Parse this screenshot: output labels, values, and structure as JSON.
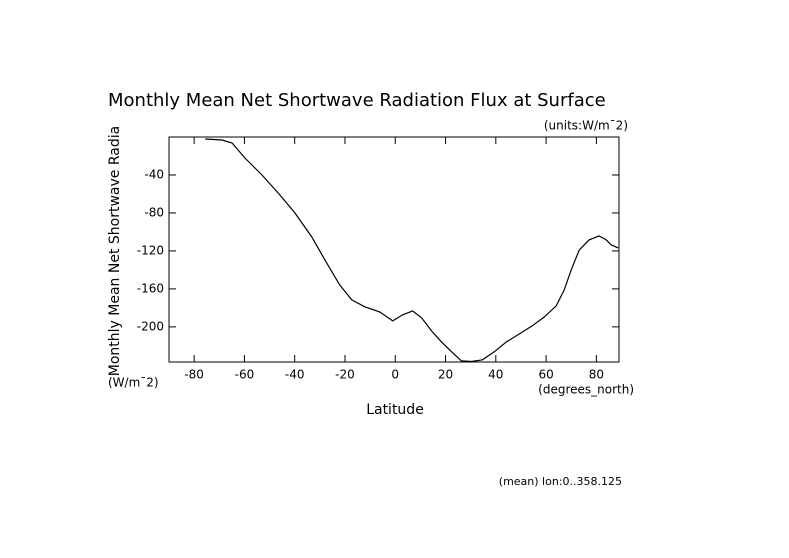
{
  "chart_data": {
    "type": "line",
    "title": "Monthly Mean Net Shortwave Radiation Flux at Surface",
    "subtitle": "(units:W/m¯2)",
    "y_label": "Monthly Mean Net Shortwave Radia",
    "y_unit": "(W/m¯2)",
    "x_label": "Latitude",
    "x_unit": "(degrees_north)",
    "footnote": "(mean) lon:0..358.125",
    "x": [
      -75.6,
      -68.9,
      -64.9,
      -59.8,
      -53,
      -45.9,
      -39.9,
      -33.2,
      -28,
      -22.1,
      -17.3,
      -12.1,
      -6.2,
      -1,
      2.9,
      6.9,
      10.5,
      14.4,
      18.4,
      22.4,
      26.3,
      30.3,
      34.7,
      39.4,
      44.2,
      49.4,
      54.5,
      59.3,
      64,
      67.2,
      70,
      73.2,
      77.1,
      81.1,
      83.9,
      85.9,
      88.7
    ],
    "values": [
      -2.1,
      -3.2,
      -6.3,
      -22.1,
      -40,
      -61.1,
      -80,
      -105.3,
      -129.5,
      -155.8,
      -171.6,
      -178.9,
      -184.2,
      -193.7,
      -187.4,
      -183.2,
      -190.5,
      -204.2,
      -215.8,
      -226.3,
      -235.8,
      -236.5,
      -234.7,
      -226.3,
      -215.8,
      -207.4,
      -198.9,
      -189.5,
      -177.9,
      -161.1,
      -140,
      -118.9,
      -108.4,
      -104.2,
      -108.4,
      -113.7,
      -116.8
    ],
    "color": "#000000",
    "xlim": [
      -90,
      89
    ],
    "ylim": [
      -237,
      0
    ],
    "xticks": [
      -80,
      -60,
      -40,
      -20,
      0,
      20,
      40,
      60,
      80
    ],
    "yticks": [
      -40,
      -80,
      -120,
      -160,
      -200
    ]
  }
}
